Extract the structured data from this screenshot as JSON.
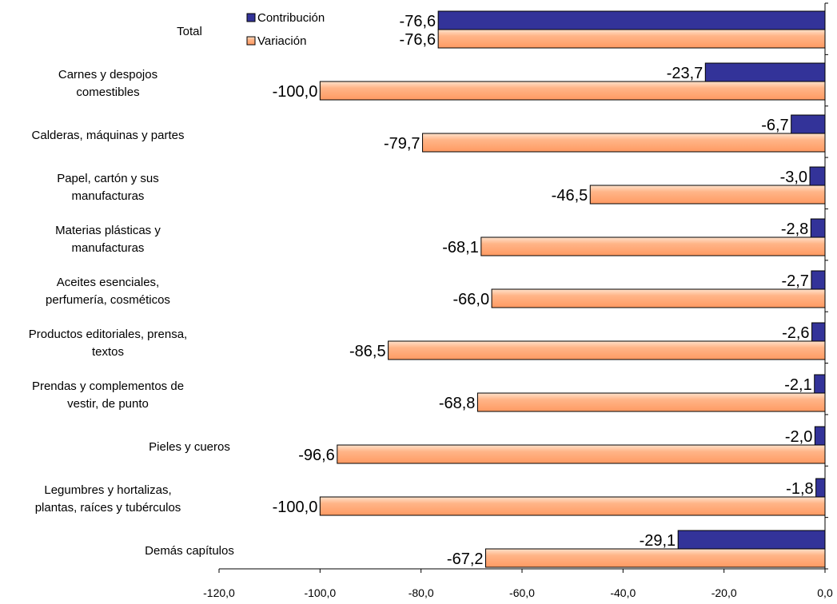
{
  "chart_data": {
    "type": "bar",
    "orientation": "horizontal",
    "categories": [
      [
        "Total"
      ],
      [
        "Carnes y despojos",
        "comestibles"
      ],
      [
        "Calderas, máquinas y partes"
      ],
      [
        "Papel, cartón y sus",
        "manufacturas"
      ],
      [
        "Materias plásticas y",
        "manufacturas"
      ],
      [
        "Aceites esenciales,",
        "perfumería, cosméticos"
      ],
      [
        "Productos editoriales, prensa,",
        "textos"
      ],
      [
        "Prendas y complementos de",
        "vestir, de punto"
      ],
      [
        "Pieles y cueros"
      ],
      [
        "Legumbres y hortalizas,",
        "plantas, raíces y tubérculos"
      ],
      [
        "Demás capítulos"
      ]
    ],
    "series": [
      {
        "name": "Contribución",
        "color": "#333399",
        "values": [
          -76.6,
          -23.7,
          -6.7,
          -3.0,
          -2.8,
          -2.7,
          -2.6,
          -2.1,
          -2.0,
          -1.8,
          -29.1
        ],
        "labels": [
          "-76,6",
          "-23,7",
          "-6,7",
          "-3,0",
          "-2,8",
          "-2,7",
          "-2,6",
          "-2,1",
          "-2,0",
          "-1,8",
          "-29,1"
        ]
      },
      {
        "name": "Variación",
        "color": "#ffad7f",
        "values": [
          -76.6,
          -100.0,
          -79.7,
          -46.5,
          -68.1,
          -66.0,
          -86.5,
          -68.8,
          -96.6,
          -100.0,
          -67.2
        ],
        "labels": [
          "-76,6",
          "-100,0",
          "-79,7",
          "-46,5",
          "-68,1",
          "-66,0",
          "-86,5",
          "-68,8",
          "-96,6",
          "-100,0",
          "-67,2"
        ]
      }
    ],
    "xlim": [
      -120,
      0
    ],
    "xticks": [
      -120,
      -100,
      -80,
      -60,
      -40,
      -20,
      0
    ],
    "xtick_labels": [
      "-120,0",
      "-100,0",
      "-80,0",
      "-60,0",
      "-40,0",
      "-20,0",
      "0,0"
    ],
    "legend_position": "top-left",
    "grid": false
  }
}
